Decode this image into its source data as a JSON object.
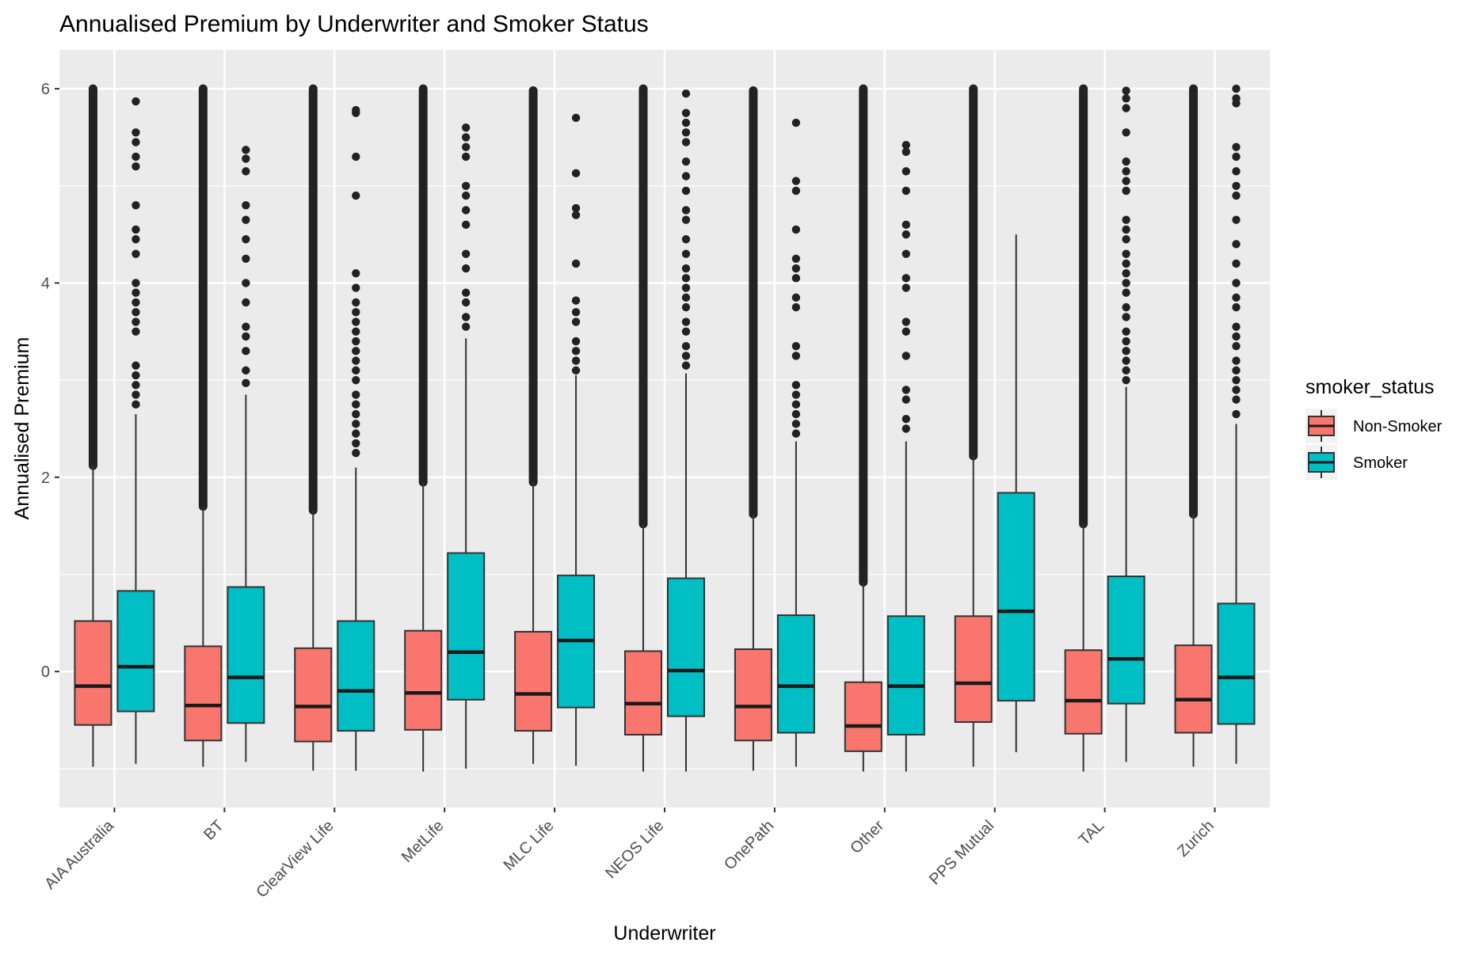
{
  "chart_data": {
    "type": "boxplot",
    "title": "Annualised Premium by Underwriter and Smoker Status",
    "xlabel": "Underwriter",
    "ylabel": "Annualised Premium",
    "ylim": [
      -1.4,
      6.4
    ],
    "yticks": [
      0,
      2,
      4,
      6
    ],
    "grid": true,
    "legend": {
      "title": "smoker_status",
      "placement": "right",
      "entries": [
        {
          "name": "Non-Smoker",
          "color": "#F8766D"
        },
        {
          "name": "Smoker",
          "color": "#00BFC4"
        }
      ]
    },
    "categories": [
      "AIA Australia",
      "BT",
      "ClearView Life",
      "MetLife",
      "MLC Life",
      "NEOS Life",
      "OnePath",
      "Other",
      "PPS Mutual",
      "TAL",
      "Zurich"
    ],
    "series": [
      {
        "name": "Non-Smoker",
        "color": "#F8766D",
        "boxes": [
          {
            "whisker_low": -0.98,
            "q1": -0.55,
            "median": -0.15,
            "q3": 0.52,
            "whisker_high": 2.12,
            "outlier_min": 2.12,
            "outlier_max": 6.0
          },
          {
            "whisker_low": -0.98,
            "q1": -0.71,
            "median": -0.35,
            "q3": 0.26,
            "whisker_high": 1.7,
            "outlier_min": 1.7,
            "outlier_max": 6.0
          },
          {
            "whisker_low": -1.02,
            "q1": -0.72,
            "median": -0.36,
            "q3": 0.24,
            "whisker_high": 1.66,
            "outlier_min": 1.66,
            "outlier_max": 6.0
          },
          {
            "whisker_low": -1.03,
            "q1": -0.6,
            "median": -0.22,
            "q3": 0.42,
            "whisker_high": 1.95,
            "outlier_min": 1.95,
            "outlier_max": 6.0
          },
          {
            "whisker_low": -0.95,
            "q1": -0.61,
            "median": -0.23,
            "q3": 0.41,
            "whisker_high": 1.95,
            "outlier_min": 1.95,
            "outlier_max": 5.98
          },
          {
            "whisker_low": -1.03,
            "q1": -0.65,
            "median": -0.33,
            "q3": 0.21,
            "whisker_high": 1.52,
            "outlier_min": 1.52,
            "outlier_max": 6.0
          },
          {
            "whisker_low": -1.02,
            "q1": -0.71,
            "median": -0.36,
            "q3": 0.23,
            "whisker_high": 1.62,
            "outlier_min": 1.62,
            "outlier_max": 5.98
          },
          {
            "whisker_low": -1.03,
            "q1": -0.82,
            "median": -0.56,
            "q3": -0.11,
            "whisker_high": 0.92,
            "outlier_min": 0.92,
            "outlier_max": 6.0
          },
          {
            "whisker_low": -0.98,
            "q1": -0.52,
            "median": -0.12,
            "q3": 0.57,
            "whisker_high": 2.22,
            "outlier_min": 2.22,
            "outlier_max": 6.0
          },
          {
            "whisker_low": -1.03,
            "q1": -0.64,
            "median": -0.3,
            "q3": 0.22,
            "whisker_high": 1.52,
            "outlier_min": 1.52,
            "outlier_max": 6.0
          },
          {
            "whisker_low": -0.98,
            "q1": -0.63,
            "median": -0.29,
            "q3": 0.27,
            "whisker_high": 1.62,
            "outlier_min": 1.62,
            "outlier_max": 6.0
          }
        ]
      },
      {
        "name": "Smoker",
        "color": "#00BFC4",
        "boxes": [
          {
            "whisker_low": -0.95,
            "q1": -0.41,
            "median": 0.05,
            "q3": 0.83,
            "whisker_high": 2.65,
            "outliers": [
              2.75,
              2.85,
              2.95,
              3.05,
              3.15,
              3.5,
              3.6,
              3.7,
              3.8,
              3.9,
              4.0,
              4.3,
              4.45,
              4.55,
              4.8,
              5.2,
              5.3,
              5.45,
              5.55,
              5.87
            ]
          },
          {
            "whisker_low": -0.93,
            "q1": -0.53,
            "median": -0.06,
            "q3": 0.87,
            "whisker_high": 2.85,
            "outliers": [
              2.97,
              3.1,
              3.3,
              3.45,
              3.55,
              3.8,
              4.0,
              4.25,
              4.45,
              4.65,
              4.8,
              5.15,
              5.28,
              5.37
            ]
          },
          {
            "whisker_low": -1.02,
            "q1": -0.61,
            "median": -0.2,
            "q3": 0.52,
            "whisker_high": 2.1,
            "outliers": [
              2.25,
              2.35,
              2.45,
              2.55,
              2.65,
              2.75,
              2.85,
              3.0,
              3.1,
              3.2,
              3.3,
              3.4,
              3.5,
              3.6,
              3.7,
              3.8,
              3.95,
              4.1,
              4.9,
              5.3,
              5.75,
              5.78
            ]
          },
          {
            "whisker_low": -1.0,
            "q1": -0.29,
            "median": 0.2,
            "q3": 1.22,
            "whisker_high": 3.43,
            "outliers": [
              3.55,
              3.65,
              3.8,
              3.9,
              4.15,
              4.3,
              4.6,
              4.75,
              4.9,
              5.0,
              5.3,
              5.4,
              5.5,
              5.6
            ]
          },
          {
            "whisker_low": -0.97,
            "q1": -0.37,
            "median": 0.32,
            "q3": 0.99,
            "whisker_high": 3.05,
            "outliers": [
              3.1,
              3.2,
              3.3,
              3.4,
              3.6,
              3.7,
              3.82,
              4.2,
              4.7,
              4.77,
              5.13,
              5.7
            ]
          },
          {
            "whisker_low": -1.03,
            "q1": -0.46,
            "median": 0.01,
            "q3": 0.96,
            "whisker_high": 3.07,
            "outliers": [
              3.15,
              3.25,
              3.35,
              3.5,
              3.6,
              3.75,
              3.85,
              3.95,
              4.05,
              4.15,
              4.3,
              4.45,
              4.65,
              4.75,
              4.95,
              5.1,
              5.25,
              5.45,
              5.55,
              5.65,
              5.75,
              5.95
            ]
          },
          {
            "whisker_low": -0.98,
            "q1": -0.63,
            "median": -0.15,
            "q3": 0.58,
            "whisker_high": 2.37,
            "outliers": [
              2.45,
              2.55,
              2.65,
              2.75,
              2.85,
              2.95,
              3.25,
              3.35,
              3.75,
              3.85,
              4.05,
              4.15,
              4.25,
              4.55,
              4.95,
              5.05,
              5.65
            ]
          },
          {
            "whisker_low": -1.03,
            "q1": -0.65,
            "median": -0.15,
            "q3": 0.57,
            "whisker_high": 2.37,
            "outliers": [
              2.5,
              2.6,
              2.8,
              2.9,
              3.25,
              3.5,
              3.6,
              3.95,
              4.05,
              4.3,
              4.5,
              4.6,
              4.95,
              5.15,
              5.35,
              5.42
            ]
          },
          {
            "whisker_low": -0.83,
            "q1": -0.3,
            "median": 0.62,
            "q3": 1.84,
            "whisker_high": 4.5,
            "outliers": []
          },
          {
            "whisker_low": -0.93,
            "q1": -0.33,
            "median": 0.13,
            "q3": 0.98,
            "whisker_high": 2.93,
            "outliers": [
              3.0,
              3.1,
              3.2,
              3.3,
              3.4,
              3.5,
              3.65,
              3.75,
              3.9,
              4.0,
              4.1,
              4.2,
              4.3,
              4.45,
              4.55,
              4.65,
              4.95,
              5.05,
              5.15,
              5.25,
              5.55,
              5.8,
              5.9,
              5.98
            ]
          },
          {
            "whisker_low": -0.95,
            "q1": -0.54,
            "median": -0.06,
            "q3": 0.7,
            "whisker_high": 2.55,
            "outliers": [
              2.65,
              2.8,
              2.9,
              3.0,
              3.1,
              3.2,
              3.35,
              3.45,
              3.55,
              3.75,
              3.85,
              4.0,
              4.2,
              4.4,
              4.65,
              4.9,
              5.0,
              5.15,
              5.3,
              5.4,
              5.85,
              5.9,
              6.0
            ]
          }
        ]
      }
    ]
  }
}
